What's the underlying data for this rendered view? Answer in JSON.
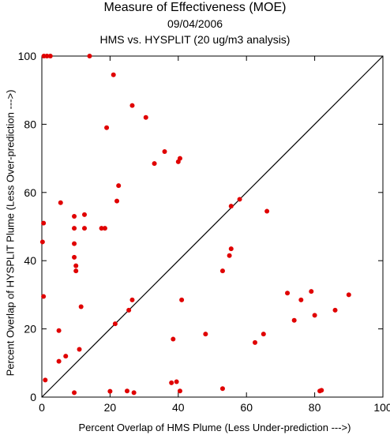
{
  "chart_data": {
    "type": "scatter",
    "title": "Measure of Effectiveness (MOE)",
    "subtitle": "09/04/2006",
    "subtitle2": "HMS vs. HYSPLIT  (20 ug/m3 analysis)",
    "xlabel": "Percent Overlap of HMS Plume (Less Under-prediction --->)",
    "ylabel": "Percent Overlap of HYSPLIT Plume (Less Over-prediction --->)",
    "xlim": [
      0,
      100
    ],
    "ylim": [
      0,
      100
    ],
    "xticks": [
      0,
      20,
      40,
      60,
      80,
      100
    ],
    "yticks": [
      0,
      20,
      40,
      60,
      80,
      100
    ],
    "grid": false,
    "reference_line": "diagonal y = x",
    "point_color": "#e00000",
    "line_color": "#000000",
    "points": [
      [
        0.6,
        100
      ],
      [
        1.5,
        100
      ],
      [
        2.5,
        100
      ],
      [
        14,
        100
      ],
      [
        21,
        94.5
      ],
      [
        26.5,
        85.5
      ],
      [
        30.5,
        82
      ],
      [
        19,
        79
      ],
      [
        36,
        72
      ],
      [
        40.5,
        70
      ],
      [
        40,
        69
      ],
      [
        33,
        68.5
      ],
      [
        22.5,
        62
      ],
      [
        22,
        57.5
      ],
      [
        5.5,
        57
      ],
      [
        58,
        58
      ],
      [
        55.5,
        56
      ],
      [
        66,
        54.5
      ],
      [
        12.5,
        53.5
      ],
      [
        9.5,
        53
      ],
      [
        0.5,
        51
      ],
      [
        18.5,
        49.5
      ],
      [
        17.5,
        49.5
      ],
      [
        12.5,
        49.5
      ],
      [
        9.5,
        49.5
      ],
      [
        0.2,
        45.5
      ],
      [
        9.5,
        45
      ],
      [
        55.5,
        43.5
      ],
      [
        55,
        41.5
      ],
      [
        9.5,
        41
      ],
      [
        10,
        38.5
      ],
      [
        10,
        37
      ],
      [
        53,
        37
      ],
      [
        0.5,
        29.5
      ],
      [
        72,
        30.5
      ],
      [
        79,
        31
      ],
      [
        90,
        30
      ],
      [
        76,
        28.5
      ],
      [
        26.5,
        28.5
      ],
      [
        41,
        28.5
      ],
      [
        11.5,
        26.5
      ],
      [
        25.5,
        25.5
      ],
      [
        86,
        25.5
      ],
      [
        80,
        24
      ],
      [
        74,
        22.5
      ],
      [
        21.5,
        21.5
      ],
      [
        5,
        19.5
      ],
      [
        48,
        18.5
      ],
      [
        65,
        18.5
      ],
      [
        38.5,
        17
      ],
      [
        62.5,
        16
      ],
      [
        11,
        14
      ],
      [
        7,
        12
      ],
      [
        5,
        10.5
      ],
      [
        1,
        5
      ],
      [
        38,
        4.2
      ],
      [
        39.5,
        4.5
      ],
      [
        53,
        2.5
      ],
      [
        20,
        1.7
      ],
      [
        25,
        1.8
      ],
      [
        40.5,
        1.8
      ],
      [
        81.5,
        1.8
      ],
      [
        82,
        2
      ],
      [
        9.5,
        1.3
      ],
      [
        27,
        1.3
      ]
    ]
  }
}
